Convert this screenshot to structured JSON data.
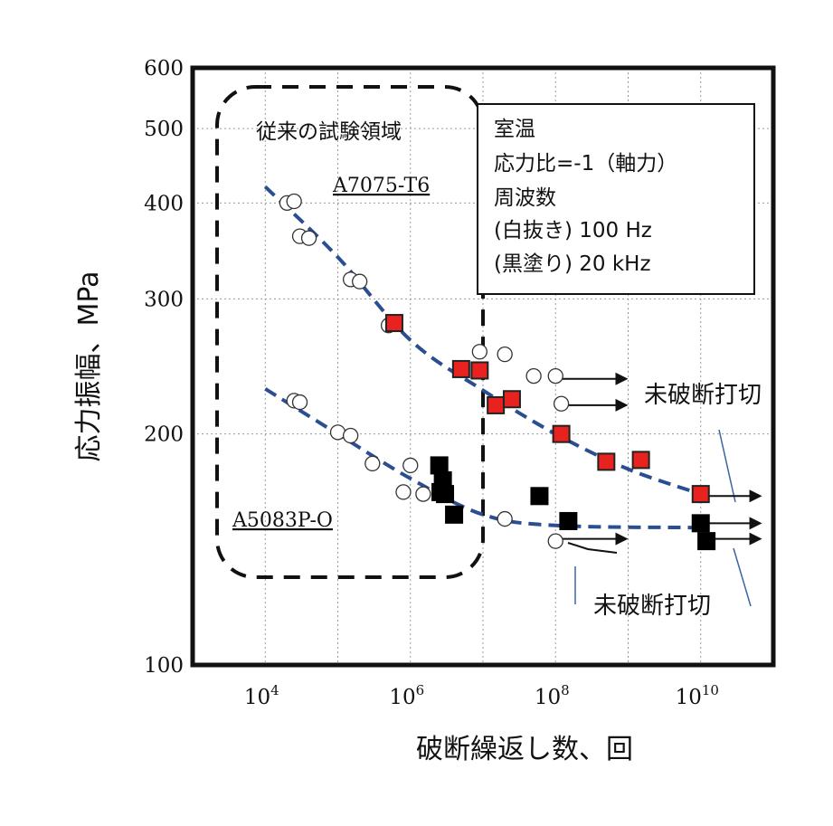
{
  "chart_data": {
    "type": "scatter",
    "title": "",
    "xlabel": "破断繰返し数、回",
    "ylabel": "応力振幅、MPa",
    "x_scale": "log",
    "y_scale": "log",
    "xlim": [
      1000,
      100000000000
    ],
    "ylim": [
      100,
      600
    ],
    "x_ticks": [
      {
        "value": 10000,
        "base": "10",
        "exp": "4"
      },
      {
        "value": 1000000,
        "base": "10",
        "exp": "6"
      },
      {
        "value": 100000000,
        "base": "10",
        "exp": "8"
      },
      {
        "value": 10000000000,
        "base": "10",
        "exp": "10"
      }
    ],
    "y_ticks": [
      {
        "value": 100,
        "label": "100"
      },
      {
        "value": 200,
        "label": "200"
      },
      {
        "value": 300,
        "label": "300"
      },
      {
        "value": 400,
        "label": "400"
      },
      {
        "value": 500,
        "label": "500"
      },
      {
        "value": 600,
        "label": "600"
      }
    ],
    "grid": true,
    "legend_box": [
      "室温",
      "応力比=-1（軸力）",
      "周波数",
      "(白抜き) 100 Hz",
      "(黒塗り) 20 kHz"
    ],
    "region_label": "従来の試験領域",
    "runout_labels": [
      "未破断打切",
      "未破断打切"
    ],
    "material_labels": [
      "A7075-T6",
      "A5083P-O"
    ],
    "series": [
      {
        "name": "A7075-T6",
        "marker": "open-circle",
        "color": "#ffffff",
        "points": [
          [
            20000,
            400
          ],
          [
            25000,
            402
          ],
          [
            30000,
            362
          ],
          [
            40000,
            360
          ],
          [
            150000,
            318
          ],
          [
            200000,
            316
          ],
          [
            500000,
            277
          ],
          [
            9000000,
            256
          ],
          [
            20000000,
            254
          ],
          [
            50000000,
            238
          ],
          [
            100000000,
            238
          ],
          [
            120000000,
            219
          ]
        ]
      },
      {
        "name": "A7075-T6",
        "marker": "square",
        "color": "#e8231f",
        "points": [
          [
            600000,
            279
          ],
          [
            5000000,
            243
          ],
          [
            9000000,
            242
          ],
          [
            15000000,
            218
          ],
          [
            25000000,
            222
          ],
          [
            120000000,
            200
          ],
          [
            500000000,
            184
          ],
          [
            1500000000,
            185
          ],
          [
            10000000000,
            167
          ]
        ]
      },
      {
        "name": "A5083P-O",
        "marker": "open-circle",
        "color": "#ffffff",
        "points": [
          [
            25000,
            221
          ],
          [
            30000,
            220
          ],
          [
            100000,
            201
          ],
          [
            150000,
            199
          ],
          [
            300000,
            183
          ],
          [
            1000000,
            182
          ],
          [
            800000,
            168
          ],
          [
            1500000,
            167
          ],
          [
            20000000,
            155
          ],
          [
            100000000,
            145
          ]
        ]
      },
      {
        "name": "A5083P-O",
        "marker": "square",
        "color": "#000000",
        "points": [
          [
            2500000,
            182
          ],
          [
            2800000,
            174
          ],
          [
            2600000,
            168
          ],
          [
            3000000,
            167
          ],
          [
            4000000,
            157
          ],
          [
            60000000,
            166
          ],
          [
            150000000,
            154
          ],
          [
            10000000000,
            153
          ],
          [
            12000000000,
            145
          ]
        ]
      }
    ],
    "trend_lines": [
      {
        "name": "A7075-T6",
        "points": [
          [
            10000,
            420
          ],
          [
            100000,
            340
          ],
          [
            1000000,
            265
          ],
          [
            10000000,
            228
          ],
          [
            100000000,
            200
          ],
          [
            1000000000,
            180
          ],
          [
            10000000000,
            167
          ]
        ]
      },
      {
        "name": "A5083P-O",
        "points": [
          [
            10000,
            229
          ],
          [
            100000,
            200
          ],
          [
            1000000,
            175
          ],
          [
            10000000,
            157
          ],
          [
            100000000,
            152
          ],
          [
            10000000000,
            151
          ]
        ]
      }
    ],
    "runout_arrows": [
      {
        "from": [
          110000000,
          236
        ],
        "to": [
          1000000000,
          236
        ]
      },
      {
        "from": [
          140000000,
          218
        ],
        "to": [
          1000000000,
          218
        ]
      },
      {
        "from": [
          110000000,
          146
        ],
        "to": [
          1000000000,
          146
        ]
      },
      {
        "from": [
          10000000000,
          166
        ],
        "to": [
          70000000000,
          166
        ]
      },
      {
        "from": [
          10000000000,
          153
        ],
        "to": [
          70000000000,
          153
        ]
      },
      {
        "from": [
          10000000000,
          146
        ],
        "to": [
          70000000000,
          146
        ]
      }
    ]
  }
}
